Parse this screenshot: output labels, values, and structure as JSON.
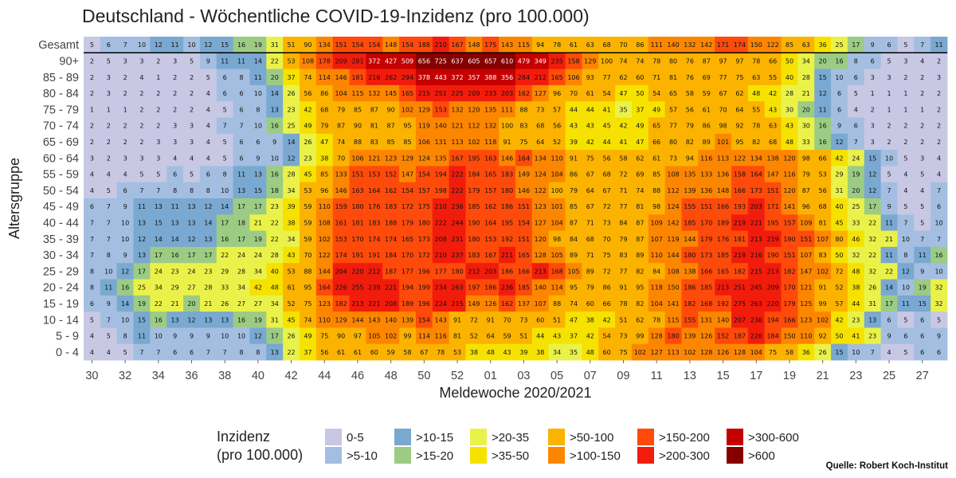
{
  "colors": {
    "0-5": "#c8c8e4",
    ">5-10": "#a3bee0",
    ">10-15": "#79a8d0",
    ">15-20": "#9ccb84",
    ">20-35": "#eaf24a",
    ">35-50": "#f6e200",
    ">50-100": "#fbb300",
    ">100-150": "#fd8600",
    ">150-200": "#fe4a0a",
    ">200-300": "#f11c0c",
    ">300-600": "#c50000",
    ">600": "#870000"
  },
  "chart_data": {
    "type": "heatmap",
    "title": "Deutschland - Wöchentliche COVID-19-Inzidenz (pro 100.000)",
    "xlabel": "Meldewoche 2020/2021",
    "ylabel": "Altersgruppe",
    "x_weeks": [
      "30",
      "31",
      "32",
      "33",
      "34",
      "35",
      "36",
      "37",
      "38",
      "39",
      "40",
      "41",
      "42",
      "43",
      "44",
      "45",
      "46",
      "47",
      "48",
      "49",
      "50",
      "51",
      "52",
      "53",
      "01",
      "02",
      "03",
      "04",
      "05",
      "06",
      "07",
      "08",
      "09",
      "10",
      "11",
      "12",
      "13",
      "14",
      "15",
      "16",
      "17",
      "18",
      "19",
      "20",
      "21",
      "22",
      "23",
      "24",
      "25",
      "26",
      "27",
      "28"
    ],
    "x_tick_labels": [
      "30",
      "32",
      "34",
      "36",
      "38",
      "40",
      "42",
      "44",
      "46",
      "48",
      "50",
      "52",
      "01",
      "03",
      "05",
      "07",
      "09",
      "11",
      "13",
      "15",
      "17",
      "19",
      "21",
      "23",
      "25",
      "27"
    ],
    "rows": [
      {
        "label": "Gesamt",
        "values": [
          5,
          6,
          7,
          10,
          12,
          11,
          10,
          12,
          15,
          16,
          19,
          31,
          51,
          90,
          134,
          151,
          154,
          154,
          148,
          154,
          188,
          210,
          167,
          148,
          175,
          143,
          115,
          94,
          78,
          61,
          63,
          68,
          70,
          86,
          111,
          140,
          132,
          142,
          171,
          174,
          150,
          122,
          85,
          63,
          36,
          25,
          17,
          9,
          6,
          5,
          7,
          11
        ]
      },
      {
        "label": "90+",
        "values": [
          2,
          5,
          3,
          3,
          2,
          3,
          5,
          9,
          11,
          11,
          14,
          22,
          53,
          108,
          178,
          209,
          281,
          372,
          427,
          509,
          656,
          725,
          637,
          605,
          657,
          610,
          479,
          349,
          235,
          158,
          129,
          100,
          74,
          74,
          78,
          80,
          76,
          87,
          97,
          97,
          78,
          66,
          50,
          34,
          20,
          16,
          8,
          6,
          5,
          3,
          4,
          2
        ]
      },
      {
        "label": "85 - 89",
        "values": [
          2,
          3,
          2,
          4,
          1,
          2,
          2,
          5,
          6,
          8,
          11,
          20,
          37,
          74,
          114,
          146,
          181,
          216,
          262,
          294,
          378,
          443,
          372,
          357,
          388,
          356,
          284,
          212,
          165,
          106,
          93,
          77,
          62,
          60,
          71,
          81,
          76,
          69,
          77,
          75,
          63,
          55,
          40,
          28,
          15,
          10,
          6,
          3,
          3,
          2,
          2,
          3
        ]
      },
      {
        "label": "80 - 84",
        "values": [
          2,
          3,
          2,
          2,
          2,
          2,
          2,
          4,
          6,
          6,
          10,
          14,
          26,
          56,
          86,
          104,
          115,
          132,
          145,
          165,
          215,
          251,
          225,
          209,
          233,
          203,
          162,
          127,
          96,
          70,
          61,
          54,
          47,
          50,
          54,
          65,
          58,
          59,
          67,
          62,
          48,
          42,
          28,
          21,
          12,
          6,
          5,
          1,
          1,
          1,
          2,
          2
        ]
      },
      {
        "label": "75 - 79",
        "values": [
          1,
          1,
          1,
          2,
          2,
          2,
          2,
          4,
          5,
          6,
          8,
          13,
          23,
          42,
          68,
          79,
          85,
          87,
          90,
          102,
          129,
          153,
          132,
          120,
          135,
          111,
          88,
          73,
          57,
          44,
          44,
          41,
          35,
          37,
          49,
          57,
          56,
          61,
          70,
          64,
          55,
          43,
          30,
          20,
          11,
          6,
          4,
          2,
          1,
          1,
          1,
          2
        ]
      },
      {
        "label": "70 - 74",
        "values": [
          2,
          2,
          2,
          2,
          2,
          3,
          3,
          4,
          7,
          7,
          10,
          16,
          25,
          49,
          79,
          87,
          90,
          81,
          87,
          95,
          119,
          140,
          121,
          112,
          132,
          100,
          83,
          68,
          56,
          43,
          43,
          45,
          42,
          49,
          65,
          77,
          79,
          86,
          98,
          92,
          78,
          63,
          43,
          30,
          16,
          9,
          6,
          3,
          2,
          2,
          2,
          2
        ]
      },
      {
        "label": "65 - 69",
        "values": [
          2,
          2,
          2,
          2,
          3,
          3,
          3,
          4,
          5,
          6,
          6,
          9,
          14,
          26,
          47,
          74,
          88,
          83,
          85,
          85,
          106,
          131,
          113,
          102,
          118,
          91,
          75,
          64,
          52,
          39,
          42,
          44,
          41,
          47,
          66,
          80,
          82,
          89,
          101,
          95,
          82,
          68,
          48,
          33,
          16,
          12,
          7,
          3,
          2,
          2,
          2,
          2
        ]
      },
      {
        "label": "60 - 64",
        "values": [
          3,
          2,
          3,
          3,
          3,
          4,
          4,
          4,
          5,
          6,
          9,
          10,
          12,
          23,
          38,
          70,
          106,
          121,
          123,
          129,
          124,
          135,
          167,
          195,
          163,
          146,
          164,
          134,
          110,
          91,
          75,
          56,
          58,
          62,
          61,
          73,
          94,
          116,
          113,
          122,
          134,
          138,
          120,
          98,
          66,
          42,
          24,
          15,
          10,
          5,
          3,
          4
        ]
      },
      {
        "label": "55 - 59",
        "values": [
          4,
          4,
          4,
          5,
          5,
          6,
          5,
          6,
          8,
          11,
          13,
          16,
          28,
          45,
          85,
          133,
          151,
          153,
          152,
          147,
          154,
          194,
          222,
          184,
          165,
          183,
          149,
          124,
          104,
          86,
          67,
          68,
          72,
          69,
          85,
          108,
          135,
          133,
          136,
          158,
          164,
          147,
          116,
          79,
          53,
          29,
          19,
          12,
          5,
          4,
          5,
          4
        ]
      },
      {
        "label": "50 - 54",
        "values": [
          4,
          5,
          6,
          7,
          7,
          8,
          8,
          8,
          10,
          13,
          15,
          18,
          34,
          53,
          96,
          146,
          163,
          164,
          162,
          154,
          157,
          198,
          222,
          179,
          157,
          180,
          146,
          122,
          100,
          79,
          64,
          67,
          71,
          74,
          88,
          112,
          139,
          136,
          148,
          166,
          173,
          151,
          120,
          87,
          56,
          31,
          20,
          12,
          7,
          4,
          4,
          7
        ]
      },
      {
        "label": "45 - 49",
        "values": [
          6,
          7,
          9,
          11,
          13,
          11,
          13,
          12,
          14,
          17,
          17,
          23,
          39,
          59,
          110,
          159,
          180,
          176,
          183,
          172,
          175,
          210,
          236,
          185,
          162,
          186,
          151,
          123,
          101,
          85,
          67,
          72,
          77,
          81,
          98,
          124,
          155,
          151,
          166,
          193,
          203,
          171,
          141,
          96,
          68,
          40,
          25,
          17,
          9,
          5,
          5,
          6
        ]
      },
      {
        "label": "40 - 44",
        "values": [
          7,
          7,
          10,
          13,
          15,
          13,
          13,
          14,
          17,
          18,
          21,
          22,
          38,
          59,
          108,
          161,
          181,
          183,
          188,
          179,
          180,
          222,
          244,
          190,
          164,
          195,
          154,
          127,
          104,
          87,
          71,
          73,
          84,
          87,
          109,
          142,
          185,
          170,
          189,
          219,
          221,
          195,
          157,
          109,
          81,
          45,
          33,
          22,
          11,
          7,
          5,
          10
        ]
      },
      {
        "label": "35 - 39",
        "values": [
          7,
          7,
          10,
          12,
          14,
          14,
          12,
          13,
          16,
          17,
          19,
          22,
          34,
          59,
          102,
          153,
          170,
          174,
          174,
          165,
          173,
          208,
          231,
          180,
          153,
          192,
          151,
          120,
          98,
          84,
          68,
          70,
          79,
          87,
          107,
          119,
          144,
          179,
          176,
          181,
          213,
          219,
          190,
          151,
          107,
          80,
          46,
          32,
          21,
          10,
          7,
          7
        ]
      },
      {
        "label": "30 - 34",
        "values": [
          7,
          8,
          9,
          13,
          17,
          16,
          17,
          17,
          22,
          24,
          24,
          28,
          43,
          70,
          122,
          174,
          191,
          191,
          184,
          170,
          172,
          210,
          237,
          183,
          167,
          211,
          165,
          128,
          105,
          89,
          71,
          75,
          83,
          89,
          110,
          144,
          180,
          173,
          185,
          219,
          216,
          190,
          151,
          107,
          83,
          50,
          32,
          22,
          11,
          8,
          11,
          16
        ]
      },
      {
        "label": "25 - 29",
        "values": [
          8,
          10,
          12,
          17,
          24,
          23,
          24,
          23,
          29,
          28,
          34,
          40,
          53,
          88,
          144,
          204,
          220,
          212,
          187,
          177,
          196,
          177,
          180,
          212,
          203,
          186,
          166,
          213,
          168,
          105,
          89,
          72,
          77,
          82,
          84,
          108,
          138,
          166,
          165,
          182,
          215,
          213,
          182,
          147,
          102,
          72,
          48,
          32,
          22,
          12,
          9,
          10
        ]
      },
      {
        "label": "20 - 24",
        "values": [
          8,
          11,
          16,
          25,
          34,
          29,
          27,
          28,
          33,
          34,
          42,
          48,
          61,
          95,
          164,
          226,
          255,
          239,
          221,
          194,
          199,
          234,
          263,
          197,
          186,
          236,
          185,
          140,
          114,
          95,
          79,
          86,
          91,
          95,
          118,
          150,
          186,
          185,
          213,
          251,
          245,
          209,
          170,
          121,
          91,
          52,
          38,
          26,
          14,
          10,
          19,
          32
        ]
      },
      {
        "label": "15 - 19",
        "values": [
          6,
          9,
          14,
          19,
          22,
          21,
          20,
          21,
          26,
          27,
          27,
          34,
          52,
          75,
          123,
          182,
          213,
          221,
          208,
          189,
          196,
          224,
          215,
          149,
          126,
          162,
          137,
          107,
          88,
          74,
          60,
          66,
          78,
          82,
          104,
          141,
          182,
          168,
          192,
          275,
          263,
          220,
          179,
          125,
          99,
          57,
          44,
          31,
          17,
          11,
          15,
          32
        ]
      },
      {
        "label": "10 - 14",
        "values": [
          5,
          7,
          10,
          15,
          16,
          13,
          12,
          13,
          13,
          16,
          19,
          31,
          45,
          74,
          110,
          129,
          144,
          143,
          140,
          139,
          154,
          143,
          91,
          72,
          91,
          70,
          73,
          60,
          51,
          47,
          38,
          42,
          51,
          62,
          78,
          115,
          155,
          131,
          140,
          207,
          236,
          194,
          166,
          123,
          102,
          42,
          23,
          13,
          6,
          5,
          6,
          5
        ]
      },
      {
        "label": "5 - 9",
        "values": [
          4,
          5,
          8,
          11,
          10,
          9,
          9,
          9,
          10,
          10,
          12,
          17,
          26,
          49,
          75,
          90,
          97,
          105,
          102,
          99,
          114,
          116,
          81,
          52,
          64,
          59,
          51,
          44,
          43,
          37,
          42,
          54,
          73,
          99,
          128,
          180,
          139,
          126,
          152,
          187,
          226,
          184,
          150,
          110,
          92,
          50,
          41,
          23,
          9,
          6,
          6,
          9
        ]
      },
      {
        "label": "0 - 4",
        "values": [
          4,
          4,
          5,
          7,
          7,
          6,
          6,
          7,
          7,
          8,
          8,
          13,
          22,
          37,
          56,
          61,
          61,
          60,
          59,
          58,
          67,
          78,
          53,
          38,
          48,
          43,
          39,
          38,
          34,
          35,
          48,
          60,
          75,
          102,
          127,
          113,
          102,
          128,
          126,
          128,
          104,
          75,
          58,
          36,
          26,
          15,
          10,
          7,
          4,
          5,
          6,
          6
        ]
      }
    ],
    "legend_title_lines": [
      "Inzidenz",
      "(pro 100.000)"
    ],
    "legend": [
      {
        "key": "0-5",
        "label": "0-5"
      },
      {
        "key": ">5-10",
        "label": ">5-10"
      },
      {
        "key": ">10-15",
        "label": ">10-15"
      },
      {
        "key": ">15-20",
        "label": ">15-20"
      },
      {
        "key": ">20-35",
        "label": ">20-35"
      },
      {
        "key": ">35-50",
        "label": ">35-50"
      },
      {
        "key": ">50-100",
        "label": ">50-100"
      },
      {
        "key": ">100-150",
        "label": ">100-150"
      },
      {
        "key": ">150-200",
        "label": ">150-200"
      },
      {
        "key": ">200-300",
        "label": ">200-300"
      },
      {
        "key": ">300-600",
        "label": ">300-600"
      },
      {
        "key": ">600",
        "label": ">600"
      }
    ],
    "source": "Quelle: Robert Koch-Institut"
  }
}
